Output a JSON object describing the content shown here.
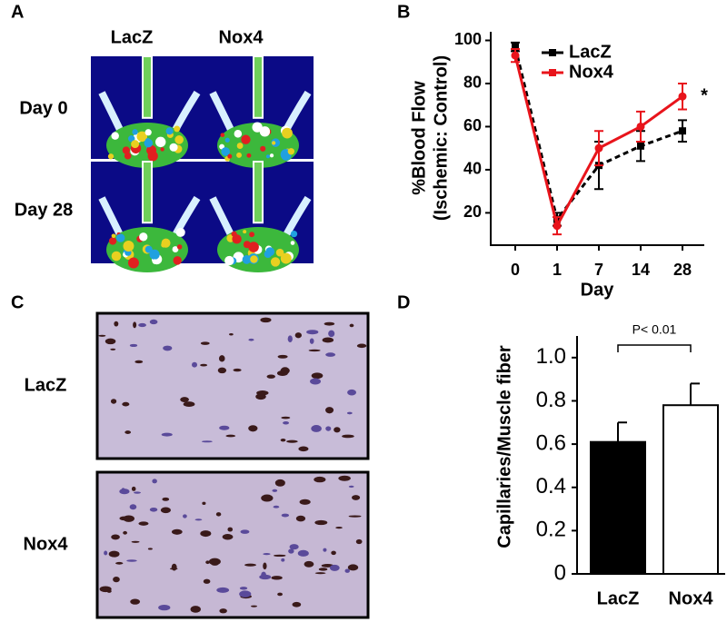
{
  "panel_a": {
    "letter": "A",
    "columns": [
      "LacZ",
      "Nox4"
    ],
    "rows": [
      "Day 0",
      "Day 28"
    ]
  },
  "panel_c": {
    "letter": "C",
    "rows": [
      "LacZ",
      "Nox4"
    ]
  },
  "chart_data": [
    {
      "type": "line",
      "letter": "B",
      "xlabel": "Day",
      "ylabel": [
        "%Blood Flow",
        "(Ischemic: Control)"
      ],
      "categories": [
        "0",
        "1",
        "7",
        "14",
        "28"
      ],
      "ylim": [
        5,
        104
      ],
      "yticks": [
        20,
        40,
        60,
        80,
        100
      ],
      "legend": "upper center",
      "annotation": "*",
      "series": [
        {
          "name": "LacZ",
          "color": "#000000",
          "dashed": true,
          "values": [
            97,
            17,
            42,
            51,
            58
          ],
          "errors": [
            2,
            3,
            11,
            7,
            5
          ]
        },
        {
          "name": "Nox4",
          "color": "#e8141b",
          "dashed": false,
          "values": [
            93,
            14,
            50,
            60,
            74
          ],
          "errors": [
            3,
            4,
            8,
            7,
            6
          ]
        }
      ]
    },
    {
      "type": "bar",
      "letter": "D",
      "ylabel": "Capillaries/Muscle fiber",
      "categories": [
        "LacZ",
        "Nox4"
      ],
      "values": [
        0.61,
        0.78
      ],
      "errors": [
        0.09,
        0.1
      ],
      "colors": [
        "#000000",
        "#ffffff"
      ],
      "ylim": [
        0,
        1.1
      ],
      "yticks": [
        0,
        0.2,
        0.4,
        0.6,
        0.8,
        {
          "value": 1,
          "label": "1.0"
        }
      ],
      "annotation": "P< 0.01"
    }
  ]
}
